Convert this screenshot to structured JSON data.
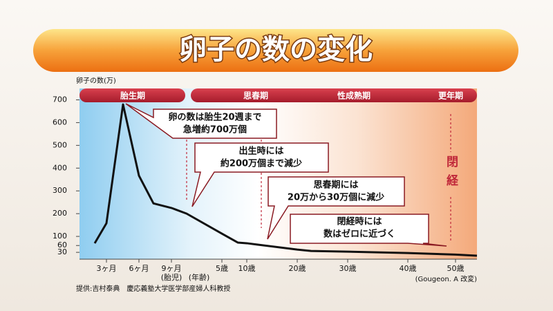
{
  "chart_data": {
    "type": "line",
    "title": "卵子の数の変化",
    "y_label": "卵子の数(万)",
    "categories": [
      null,
      "3ヶ月",
      null,
      "6ヶ月",
      null,
      "9ヶ月",
      null,
      "5歳",
      null,
      "10歳",
      null,
      "20歳",
      null,
      "30歳",
      "40歳",
      "50歳",
      null
    ],
    "values": [
      70,
      158,
      680,
      367,
      245,
      225,
      200,
      112,
      73,
      70,
      64,
      42,
      36,
      33,
      27,
      20,
      15
    ],
    "color": "#111111",
    "ylim": [
      0,
      750
    ],
    "yticks": [
      30,
      60,
      100,
      200,
      300,
      400,
      500,
      600,
      700
    ],
    "x_notes": [
      "(胎児)",
      "(年齢)"
    ],
    "phases": [
      "胎生期",
      "思春期",
      "性成熟期",
      "更年期"
    ],
    "annotation": "閉経",
    "callouts": [
      [
        "卵の数は胎生20週まで",
        "急増約700万個"
      ],
      [
        "出生時には",
        "約200万個まで減少"
      ],
      [
        "思春期には",
        "20万から30万個に減少"
      ],
      [
        "閉経時には",
        "数はゼロに近づく"
      ]
    ],
    "credit": "提供:吉村泰典　慶応義塾大学医学部産婦人科教授",
    "source": "(Gougeon. A 改変)"
  }
}
